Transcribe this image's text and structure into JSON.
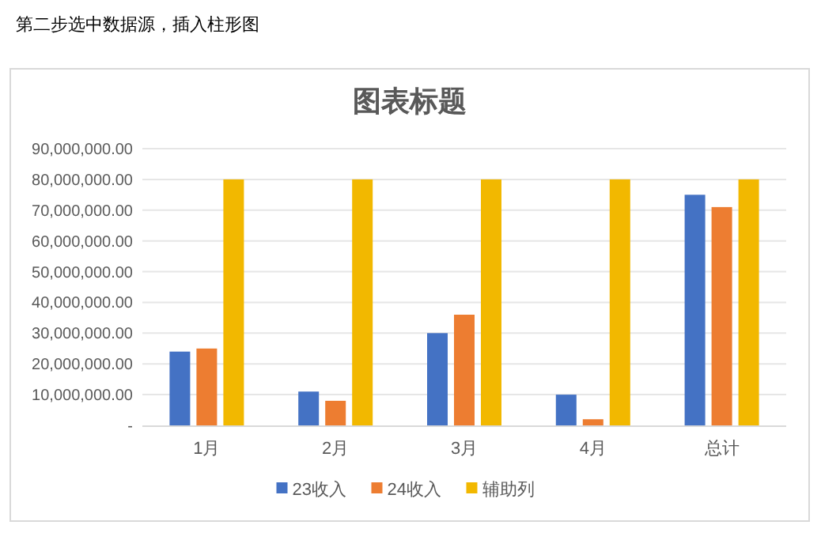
{
  "chart_data": {
    "type": "bar",
    "title": "图表标题",
    "annotations": [
      "第二步选中数据源，插入柱形图"
    ],
    "categories": [
      "1月",
      "2月",
      "3月",
      "4月",
      "总计"
    ],
    "series": [
      {
        "name": "23收入",
        "color": "#4472c4",
        "values": [
          24000000,
          11000000,
          30000000,
          10000000,
          75000000
        ]
      },
      {
        "name": "24收入",
        "color": "#ed7d31",
        "values": [
          25000000,
          8000000,
          36000000,
          2000000,
          71000000
        ]
      },
      {
        "name": "辅助列",
        "color": "#f2b800",
        "values": [
          80000000,
          80000000,
          80000000,
          80000000,
          80000000
        ]
      }
    ],
    "ylim": [
      0,
      90000000
    ],
    "yticks": [
      {
        "value": 0,
        "label": "-"
      },
      {
        "value": 10000000,
        "label": "10,000,000.00"
      },
      {
        "value": 20000000,
        "label": "20,000,000.00"
      },
      {
        "value": 30000000,
        "label": "30,000,000.00"
      },
      {
        "value": 40000000,
        "label": "40,000,000.00"
      },
      {
        "value": 50000000,
        "label": "50,000,000.00"
      },
      {
        "value": 60000000,
        "label": "60,000,000.00"
      },
      {
        "value": 70000000,
        "label": "70,000,000.00"
      },
      {
        "value": 80000000,
        "label": "80,000,000.00"
      },
      {
        "value": 90000000,
        "label": "90,000,000.00"
      }
    ],
    "grid": "y",
    "legend": "bottom"
  }
}
